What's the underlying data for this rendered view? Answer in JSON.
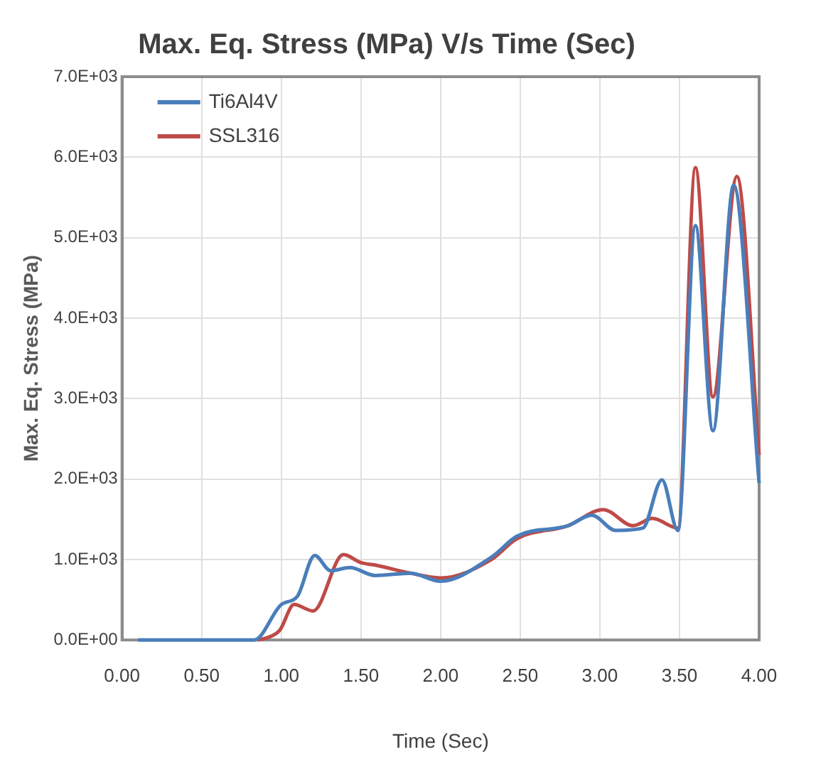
{
  "chart_data": {
    "type": "line",
    "title": "Max. Eq. Stress (MPa) V/s Time (Sec)",
    "xlabel": "Time (Sec)",
    "ylabel": "Max. Eq. Stress (MPa)",
    "xlim": [
      0,
      4
    ],
    "xticks": [
      {
        "value": 0,
        "label": "0.00"
      },
      {
        "value": 0.5,
        "label": "0.50"
      },
      {
        "value": 1,
        "label": "1.00"
      },
      {
        "value": 1.5,
        "label": "1.50"
      },
      {
        "value": 2,
        "label": "2.00"
      },
      {
        "value": 2.5,
        "label": "2.50"
      },
      {
        "value": 3,
        "label": "3.00"
      },
      {
        "value": 3.5,
        "label": "3.50"
      },
      {
        "value": 4,
        "label": "4.00"
      }
    ],
    "ylim": [
      0,
      7000
    ],
    "yticks": [
      {
        "value": 0,
        "label": "0.0E+00"
      },
      {
        "value": 1000,
        "label": "1.0E+03"
      },
      {
        "value": 2000,
        "label": "2.0E+03"
      },
      {
        "value": 3000,
        "label": "3.0E+03"
      },
      {
        "value": 4000,
        "label": "4.0E+03"
      },
      {
        "value": 5000,
        "label": "5.0E+03"
      },
      {
        "value": 6000,
        "label": "6.0E+03"
      },
      {
        "value": 7000,
        "label": "7.0E+03"
      }
    ],
    "grid": true,
    "legend": "top left",
    "marker": "none",
    "line_style": "solid",
    "series": [
      {
        "name": "Ti6Al4V",
        "color": "#4a7ebb",
        "x": [
          0.1,
          0.2,
          0.3,
          0.4,
          0.5,
          0.6,
          0.7,
          0.83,
          1.0,
          1.1,
          1.21,
          1.31,
          1.43,
          1.59,
          1.81,
          2.0,
          2.32,
          2.48,
          2.8,
          2.95,
          3.1,
          3.27,
          3.39,
          3.49,
          3.6,
          3.71,
          3.84,
          4.0
        ],
        "values": [
          0,
          0,
          0,
          0,
          0,
          0,
          0,
          0,
          440,
          540,
          1050,
          860,
          900,
          800,
          830,
          730,
          1030,
          1290,
          1420,
          1550,
          1360,
          1390,
          1990,
          1360,
          5150,
          2600,
          5650,
          1950
        ]
      },
      {
        "name": "SSL316",
        "color": "#be4b48",
        "x": [
          0.85,
          0.9,
          0.99,
          1.08,
          1.2,
          1.39,
          1.5,
          1.59,
          1.81,
          2.0,
          2.32,
          2.48,
          2.8,
          3.02,
          3.21,
          3.33,
          3.49,
          3.6,
          3.71,
          3.86,
          4.0
        ],
        "values": [
          0,
          20,
          120,
          440,
          360,
          1060,
          960,
          930,
          830,
          770,
          1000,
          1260,
          1420,
          1620,
          1420,
          1510,
          1390,
          5870,
          3020,
          5760,
          2300
        ]
      }
    ]
  }
}
